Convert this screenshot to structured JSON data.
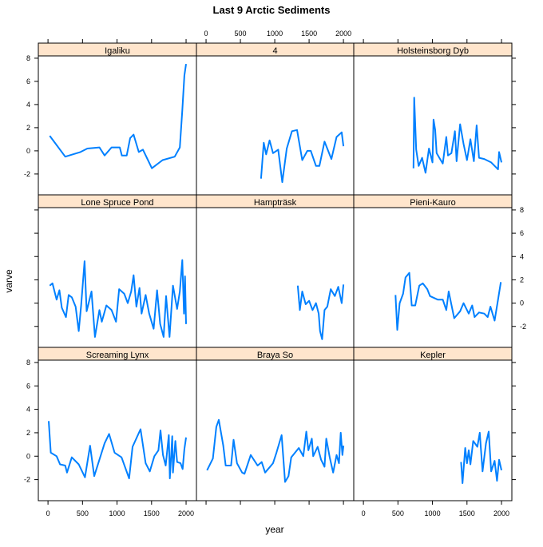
{
  "chart_data": {
    "type": "line",
    "title": "Last 9 Arctic Sediments",
    "xlabel": "year",
    "ylabel": "varve",
    "xlim": [
      -140,
      2150
    ],
    "ylim": [
      -3.8,
      8.2
    ],
    "x_ticks": [
      0,
      500,
      1000,
      1500,
      2000
    ],
    "y_ticks": [
      -2,
      0,
      2,
      4,
      6,
      8
    ],
    "grid": false,
    "legend": "none",
    "layout": "3x3 panels",
    "line_color": "#0080ff",
    "strip_color": "#ffe5cc",
    "panels": [
      {
        "name": "Igaliku",
        "x": [
          25,
          250,
          470,
          570,
          745,
          820,
          920,
          1040,
          1070,
          1140,
          1190,
          1240,
          1315,
          1375,
          1505,
          1660,
          1835,
          1910,
          1945,
          1975,
          2000
        ],
        "y": [
          1.3,
          -0.5,
          -0.1,
          0.2,
          0.3,
          -0.4,
          0.3,
          0.3,
          -0.4,
          -0.4,
          1.1,
          1.4,
          -0.1,
          0.1,
          -1.5,
          -0.8,
          -0.5,
          0.3,
          3.5,
          6.5,
          7.5
        ]
      },
      {
        "name": "4",
        "x": [
          800,
          840,
          875,
          925,
          975,
          1050,
          1110,
          1175,
          1250,
          1325,
          1400,
          1475,
          1525,
          1600,
          1650,
          1725,
          1825,
          1900,
          1975,
          2000
        ],
        "y": [
          -2.4,
          0.7,
          -0.3,
          0.9,
          -0.2,
          0.1,
          -2.7,
          0.2,
          1.7,
          1.8,
          -0.8,
          0,
          0,
          -1.3,
          -1.3,
          0.8,
          -0.7,
          1.2,
          1.6,
          0.4
        ]
      },
      {
        "name": "Holsteinsborg Dyb",
        "x": [
          725,
          735,
          765,
          800,
          850,
          900,
          950,
          1000,
          1015,
          1040,
          1060,
          1100,
          1150,
          1200,
          1225,
          1275,
          1325,
          1350,
          1400,
          1450,
          1500,
          1550,
          1600,
          1640,
          1675,
          1750,
          1850,
          1950,
          1965,
          2000
        ],
        "y": [
          -1.5,
          4.6,
          0.1,
          -1.3,
          -0.6,
          -1.9,
          0.2,
          -1.0,
          2.7,
          1.8,
          -0.2,
          -0.6,
          -1.1,
          1.2,
          -0.4,
          -0.2,
          1.7,
          -0.9,
          2.3,
          0.6,
          -0.8,
          1.0,
          -0.9,
          2.2,
          -0.6,
          -0.7,
          -1.0,
          -1.6,
          -0.1,
          -1.0
        ]
      },
      {
        "name": "Lone Spruce Pond",
        "x": [
          25,
          65,
          125,
          165,
          200,
          260,
          300,
          345,
          400,
          445,
          480,
          530,
          560,
          630,
          680,
          745,
          780,
          845,
          920,
          985,
          1030,
          1105,
          1155,
          1205,
          1240,
          1280,
          1325,
          1355,
          1415,
          1465,
          1530,
          1580,
          1625,
          1675,
          1710,
          1760,
          1810,
          1870,
          1910,
          1945,
          1970,
          1985,
          2000
        ],
        "y": [
          1.5,
          1.7,
          0.3,
          1.1,
          -0.4,
          -1.2,
          0.7,
          0.5,
          -0.3,
          -2.4,
          -0.2,
          3.6,
          -0.7,
          1.0,
          -2.9,
          -0.6,
          -1.6,
          -0.2,
          -0.6,
          -1.6,
          1.2,
          0.8,
          0.0,
          1.0,
          2.4,
          -0.3,
          1.3,
          -0.9,
          0.7,
          -0.9,
          -2.2,
          1.1,
          -1.8,
          -2.9,
          0.6,
          -2.9,
          1.5,
          -0.5,
          1.0,
          3.7,
          -0.9,
          2.3,
          -1.8
        ]
      },
      {
        "name": "Hampträsk",
        "x": [
          1335,
          1365,
          1400,
          1450,
          1500,
          1550,
          1600,
          1640,
          1660,
          1690,
          1725,
          1765,
          1815,
          1875,
          1925,
          1975,
          2000
        ],
        "y": [
          1.5,
          -0.6,
          1.0,
          -0.1,
          0.2,
          -0.6,
          0.0,
          -0.9,
          -2.4,
          -3.1,
          -0.6,
          -0.3,
          1.2,
          0.6,
          1.4,
          0.0,
          1.6
        ]
      },
      {
        "name": "Pieni-Kauro",
        "x": [
          465,
          490,
          525,
          575,
          610,
          665,
          700,
          750,
          810,
          860,
          925,
          965,
          1075,
          1150,
          1200,
          1235,
          1315,
          1400,
          1450,
          1525,
          1575,
          1610,
          1675,
          1750,
          1800,
          1840,
          1900,
          1950,
          1990
        ],
        "y": [
          0.7,
          -2.3,
          0.0,
          0.8,
          2.2,
          2.6,
          -0.2,
          -0.2,
          1.5,
          1.7,
          1.2,
          0.6,
          0.3,
          0.3,
          -0.6,
          1.0,
          -1.3,
          -0.7,
          0.0,
          -0.9,
          -0.2,
          -1.2,
          -0.8,
          -0.9,
          -1.2,
          -0.3,
          -1.5,
          0.3,
          1.8
        ]
      },
      {
        "name": "Screaming Lynx",
        "x": [
          10,
          40,
          125,
          175,
          250,
          275,
          345,
          445,
          535,
          610,
          670,
          820,
          885,
          965,
          1065,
          1175,
          1225,
          1340,
          1415,
          1475,
          1540,
          1600,
          1630,
          1665,
          1705,
          1750,
          1765,
          1800,
          1810,
          1845,
          1870,
          1920,
          1950,
          1975,
          2000
        ],
        "y": [
          3.0,
          0.3,
          0.0,
          -0.7,
          -0.8,
          -1.4,
          -0.1,
          -0.7,
          -1.8,
          0.9,
          -1.7,
          1.1,
          1.9,
          0.3,
          -0.1,
          -1.9,
          0.8,
          2.3,
          -0.6,
          -1.3,
          0.0,
          0.5,
          2.2,
          0.1,
          -0.8,
          1.8,
          -1.9,
          1.7,
          -1.4,
          1.3,
          -0.5,
          -0.6,
          -1.1,
          0.6,
          1.6
        ]
      },
      {
        "name": "Braya So",
        "x": [
          15,
          100,
          150,
          185,
          250,
          285,
          365,
          400,
          450,
          525,
          560,
          650,
          750,
          810,
          860,
          975,
          1025,
          1100,
          1150,
          1200,
          1240,
          1350,
          1415,
          1460,
          1490,
          1540,
          1560,
          1625,
          1675,
          1725,
          1750,
          1800,
          1850,
          1900,
          1935,
          1960,
          1985,
          2000
        ],
        "y": [
          -1.2,
          -0.2,
          2.5,
          3.1,
          0.9,
          -0.8,
          -0.8,
          1.4,
          -0.6,
          -1.4,
          -1.5,
          0.1,
          -0.8,
          -0.5,
          -1.4,
          -0.6,
          0.3,
          1.8,
          -2.2,
          -1.7,
          -0.1,
          0.7,
          0.0,
          2.1,
          0.5,
          1.5,
          0.0,
          0.8,
          -0.3,
          -0.9,
          1.5,
          -0.1,
          -1.4,
          0.1,
          -0.6,
          2.0,
          0.1,
          0.9
        ]
      },
      {
        "name": "Kepler",
        "x": [
          1415,
          1435,
          1475,
          1500,
          1525,
          1550,
          1590,
          1650,
          1685,
          1725,
          1775,
          1815,
          1850,
          1900,
          1935,
          1965,
          2000
        ],
        "y": [
          -0.5,
          -2.3,
          0.7,
          -0.6,
          0.5,
          -0.7,
          1.3,
          0.8,
          2.0,
          -1.3,
          1.1,
          2.1,
          -1.3,
          -0.4,
          -2.1,
          -0.3,
          -1.2
        ]
      }
    ]
  }
}
